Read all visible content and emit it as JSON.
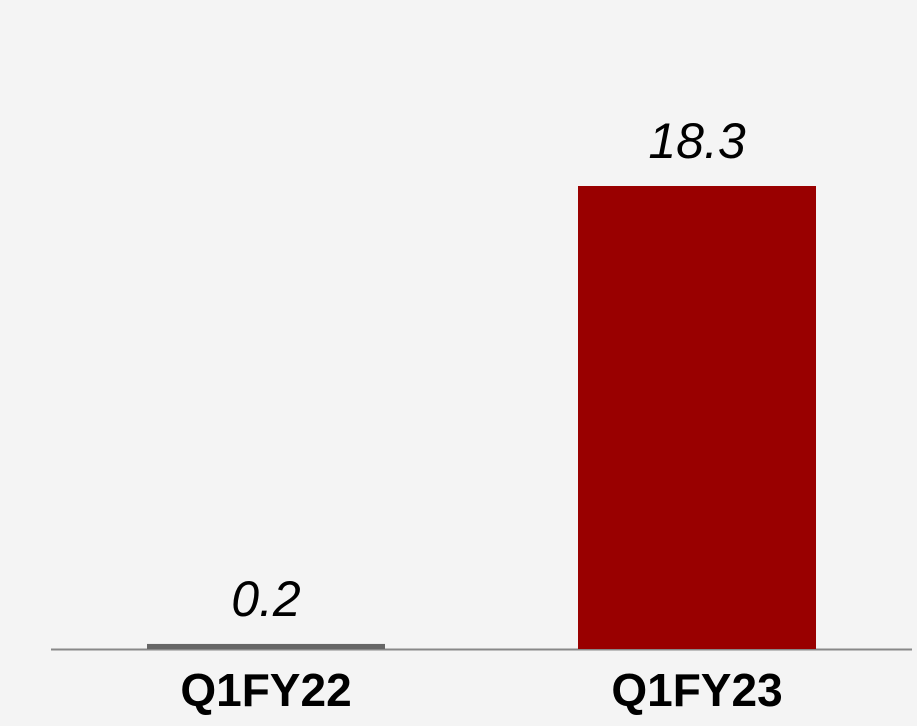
{
  "chart_data": {
    "type": "bar",
    "categories": [
      "Q1FY22",
      "Q1FY23"
    ],
    "values": [
      0.2,
      18.3
    ],
    "colors": [
      "#666666",
      "#990000"
    ]
  }
}
